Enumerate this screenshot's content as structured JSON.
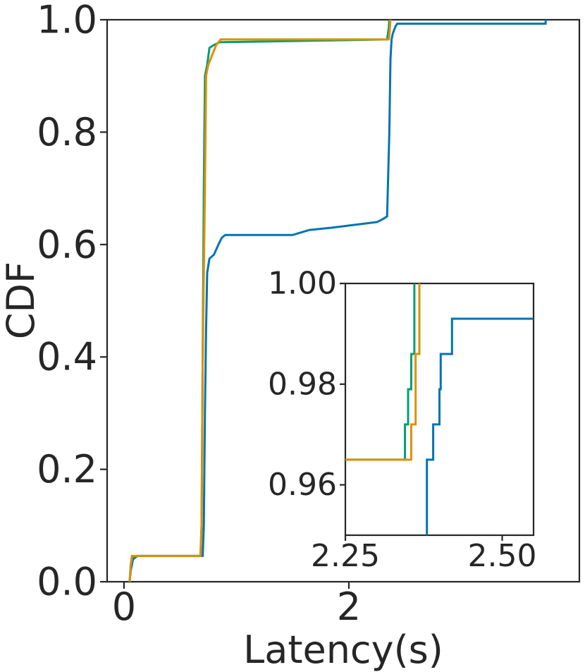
{
  "chart_data": [
    {
      "type": "line",
      "subtype": "step-cdf",
      "title": "",
      "xlabel": "Latency(s)",
      "ylabel": "CDF",
      "xlim": [
        -0.15,
        4.05
      ],
      "ylim": [
        0.0,
        1.0
      ],
      "xticks": [
        0,
        2
      ],
      "xtick_labels": [
        "0",
        "2"
      ],
      "yticks": [
        0.0,
        0.2,
        0.4,
        0.6,
        0.8,
        1.0
      ],
      "ytick_labels": [
        "0.0",
        "0.2",
        "0.4",
        "0.6",
        "0.8",
        "1.0"
      ],
      "grid": false,
      "legend": "none",
      "series": [
        {
          "color": "#0173b2",
          "points": [
            [
              0.05,
              0
            ],
            [
              0.06,
              0.02
            ],
            [
              0.07,
              0.03
            ],
            [
              0.08,
              0.04
            ],
            [
              0.1,
              0.043
            ],
            [
              0.12,
              0.046
            ],
            [
              0.7,
              0.046
            ],
            [
              0.71,
              0.1
            ],
            [
              0.72,
              0.3
            ],
            [
              0.73,
              0.45
            ],
            [
              0.74,
              0.55
            ],
            [
              0.76,
              0.575
            ],
            [
              0.8,
              0.582
            ],
            [
              0.84,
              0.6
            ],
            [
              0.87,
              0.612
            ],
            [
              0.9,
              0.617
            ],
            [
              1.5,
              0.617
            ],
            [
              1.55,
              0.62
            ],
            [
              1.65,
              0.626
            ],
            [
              1.85,
              0.63
            ],
            [
              2.05,
              0.635
            ],
            [
              2.25,
              0.64
            ],
            [
              2.3,
              0.645
            ],
            [
              2.34,
              0.65
            ],
            [
              2.36,
              0.8
            ],
            [
              2.37,
              0.93
            ],
            [
              2.38,
              0.965
            ],
            [
              2.39,
              0.975
            ],
            [
              2.41,
              0.986
            ],
            [
              2.42,
              0.99
            ],
            [
              2.43,
              0.993
            ],
            [
              3.75,
              0.993
            ],
            [
              3.75,
              1.0
            ]
          ]
        },
        {
          "color": "#029e73",
          "points": [
            [
              0.05,
              0
            ],
            [
              0.06,
              0.03
            ],
            [
              0.08,
              0.044
            ],
            [
              0.12,
              0.046
            ],
            [
              0.68,
              0.046
            ],
            [
              0.69,
              0.1
            ],
            [
              0.7,
              0.4
            ],
            [
              0.71,
              0.7
            ],
            [
              0.72,
              0.9
            ],
            [
              0.74,
              0.92
            ],
            [
              0.76,
              0.95
            ],
            [
              0.8,
              0.955
            ],
            [
              0.85,
              0.96
            ],
            [
              2.34,
              0.965
            ],
            [
              2.345,
              0.972
            ],
            [
              2.35,
              0.979
            ],
            [
              2.355,
              0.986
            ],
            [
              2.36,
              1.0
            ]
          ]
        },
        {
          "color": "#de8f05",
          "points": [
            [
              0.05,
              0
            ],
            [
              0.06,
              0.03
            ],
            [
              0.07,
              0.046
            ],
            [
              0.68,
              0.046
            ],
            [
              0.69,
              0.1
            ],
            [
              0.7,
              0.4
            ],
            [
              0.72,
              0.7
            ],
            [
              0.73,
              0.9
            ],
            [
              0.75,
              0.92
            ],
            [
              0.78,
              0.935
            ],
            [
              0.82,
              0.955
            ],
            [
              0.86,
              0.965
            ],
            [
              2.355,
              0.965
            ],
            [
              2.36,
              0.972
            ],
            [
              2.365,
              0.986
            ],
            [
              2.37,
              1.0
            ]
          ]
        }
      ]
    },
    {
      "type": "line",
      "subtype": "inset-zoom",
      "title": "",
      "xlabel": "",
      "ylabel": "",
      "xlim": [
        2.25,
        2.55
      ],
      "ylim": [
        0.95,
        1.0
      ],
      "xticks": [
        2.25,
        2.5
      ],
      "xtick_labels": [
        "2.25",
        "2.50"
      ],
      "yticks": [
        0.96,
        0.98,
        1.0
      ],
      "ytick_labels": [
        "0.96",
        "0.98",
        "1.00"
      ],
      "grid": false,
      "legend": "none",
      "series": [
        {
          "color": "#0173b2",
          "points": [
            [
              2.38,
              0.95
            ],
            [
              2.38,
              0.965
            ],
            [
              2.39,
              0.965
            ],
            [
              2.39,
              0.972
            ],
            [
              2.4,
              0.972
            ],
            [
              2.4,
              0.979
            ],
            [
              2.402,
              0.979
            ],
            [
              2.402,
              0.986
            ],
            [
              2.42,
              0.986
            ],
            [
              2.42,
              0.993
            ],
            [
              2.55,
              0.993
            ]
          ]
        },
        {
          "color": "#029e73",
          "points": [
            [
              2.25,
              0.965
            ],
            [
              2.345,
              0.965
            ],
            [
              2.345,
              0.972
            ],
            [
              2.35,
              0.972
            ],
            [
              2.35,
              0.979
            ],
            [
              2.355,
              0.979
            ],
            [
              2.355,
              0.986
            ],
            [
              2.36,
              0.986
            ],
            [
              2.36,
              1.0
            ]
          ]
        },
        {
          "color": "#de8f05",
          "points": [
            [
              2.25,
              0.965
            ],
            [
              2.355,
              0.965
            ],
            [
              2.355,
              0.972
            ],
            [
              2.362,
              0.972
            ],
            [
              2.362,
              0.986
            ],
            [
              2.368,
              0.986
            ],
            [
              2.368,
              1.0
            ]
          ]
        }
      ]
    }
  ]
}
